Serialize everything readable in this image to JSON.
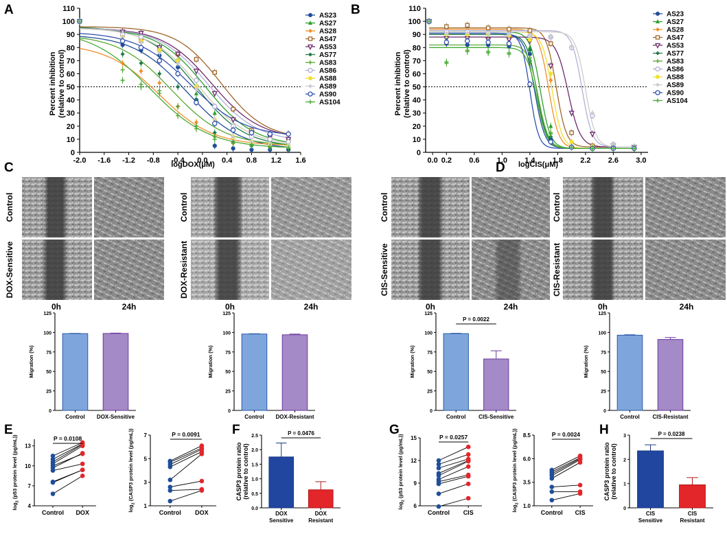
{
  "colors": {
    "blue": "#1f4e9a",
    "bar_blue": "#7fa6dc",
    "bar_purple": "#a48ac6",
    "dark_blue": "#2046a0",
    "red": "#e3262a"
  },
  "legend_series": [
    {
      "name": "AS23",
      "color": "#1f4e9a",
      "marker": "circle"
    },
    {
      "name": "AS27",
      "color": "#2ca02c",
      "marker": "triangle"
    },
    {
      "name": "AS28",
      "color": "#f28e2b",
      "marker": "diamond"
    },
    {
      "name": "AS47",
      "color": "#a0662a",
      "marker": "square-open"
    },
    {
      "name": "AS53",
      "color": "#6b2a6b",
      "marker": "triangle-down-open"
    },
    {
      "name": "AS77",
      "color": "#1e7a4a",
      "marker": "diamond"
    },
    {
      "name": "AS83",
      "color": "#5aa832",
      "marker": "plus"
    },
    {
      "name": "AS86",
      "color": "#b0b0d8",
      "marker": "circle-open"
    },
    {
      "name": "AS88",
      "color": "#f2e030",
      "marker": "circle"
    },
    {
      "name": "AS89",
      "color": "#cccccc",
      "marker": "diamond"
    },
    {
      "name": "AS90",
      "color": "#3050b0",
      "marker": "circle-open"
    },
    {
      "name": "AS104",
      "color": "#44aa33",
      "marker": "plus"
    }
  ],
  "panels": {
    "A": {
      "label": "A",
      "xlabel": "logDOX(μM)"
    },
    "B": {
      "label": "B",
      "xlabel": "logCIS(μM)"
    },
    "C": {
      "label": "C"
    },
    "D": {
      "label": "D"
    },
    "E": {
      "label": "E"
    },
    "F": {
      "label": "F"
    },
    "G": {
      "label": "G"
    },
    "H": {
      "label": "H"
    }
  },
  "dose_ylabel_line1": "Percent inhibition",
  "dose_ylabel_line2": "(relative to control)",
  "micro": {
    "row_top": "Control",
    "c_sens": "DOX-Sensitive",
    "c_res": "DOX-Resistant",
    "d_sens": "CIS-Sensitive",
    "d_res": "CIS-Resistant",
    "time_0": "0h",
    "time_24": "24h"
  },
  "migration_ylabel": "Migration (%)",
  "p_values": {
    "mig_cis_sens": "P = 0.0022",
    "e_p53": "P = 0.0108",
    "e_casp3": "P = 0.0091",
    "f": "P = 0.0476",
    "g_p53": "P = 0.0257",
    "g_casp3": "P = 0.0024",
    "h": "P = 0.0238"
  },
  "paired": {
    "ylabel_p53_pre": "log",
    "ylabel_p53_sub": "2",
    "ylabel_p53_post": " (p53 protein level (pg/mL))",
    "ylabel_casp3_pre": "log",
    "ylabel_casp3_sub": "2",
    "ylabel_casp3_post": " (CASP3 protein level (pg/mL))"
  },
  "bar_ylabel_line1": "CASP3 protein ratio",
  "bar_ylabel_line2": "(relative to control)",
  "bar_categories": {
    "dox_sens_1": "DOX",
    "dox_sens_2": "Sensitive",
    "dox_res_1": "DOX",
    "dox_res_2": "Resistant",
    "cis_sens_1": "CIS",
    "cis_sens_2": "Sensitive",
    "cis_res_1": "CIS",
    "cis_res_2": "Resistant"
  },
  "chart_data": [
    {
      "id": "A",
      "type": "line",
      "title": "",
      "xlabel": "logDOX(μM)",
      "ylabel": "Percent inhibition (relative to control)",
      "xlim": [
        -2.0,
        1.6
      ],
      "ylim": [
        0,
        110
      ],
      "xticks": [
        "-2.0",
        "-1.6",
        "-1.2",
        "-0.8",
        "-0.4",
        "0.0",
        "0.4",
        "0.8",
        "1.2",
        "1.6"
      ],
      "yticks": [
        "0",
        "10",
        "20",
        "30",
        "40",
        "50",
        "60",
        "70",
        "80",
        "90",
        "100",
        "110"
      ],
      "reference_line": 50,
      "x": [
        -2.0,
        -1.3,
        -1.0,
        -0.7,
        -0.4,
        -0.1,
        0.2,
        0.5,
        0.8,
        1.1,
        1.4
      ],
      "series": [
        {
          "name": "AS23",
          "top": 90,
          "bottom": 2,
          "ic50": -0.25,
          "hill": 1.0,
          "values": [
            100,
            82,
            78,
            74,
            65,
            40,
            5,
            3,
            2,
            2,
            2
          ]
        },
        {
          "name": "AS27",
          "top": 95,
          "bottom": 5,
          "ic50": 0.05,
          "hill": 1.1,
          "values": [
            100,
            90,
            85,
            80,
            70,
            45,
            30,
            12,
            7,
            5,
            5
          ]
        },
        {
          "name": "AS28",
          "top": 83,
          "bottom": 5,
          "ic50": -0.7,
          "hill": 1.0,
          "values": [
            100,
            68,
            62,
            53,
            35,
            23,
            12,
            7,
            5,
            4,
            4
          ]
        },
        {
          "name": "AS47",
          "top": 96,
          "bottom": 10,
          "ic50": 0.3,
          "hill": 1.2,
          "values": [
            100,
            90,
            85,
            80,
            75,
            71,
            61,
            33,
            17,
            12,
            10
          ]
        },
        {
          "name": "AS53",
          "top": 95,
          "bottom": 10,
          "ic50": 0.15,
          "hill": 1.1,
          "values": [
            100,
            92,
            91,
            80,
            75,
            62,
            45,
            25,
            15,
            12,
            10
          ]
        },
        {
          "name": "AS77",
          "top": 96,
          "bottom": 4,
          "ic50": -0.1,
          "hill": 1.1,
          "values": [
            100,
            75,
            68,
            60,
            50,
            40,
            15,
            8,
            5,
            4,
            4
          ]
        },
        {
          "name": "AS83",
          "top": 90,
          "bottom": 5,
          "ic50": -0.5,
          "hill": 1.0,
          "values": [
            100,
            63,
            52,
            47,
            28,
            18,
            12,
            8,
            6,
            5,
            5
          ]
        },
        {
          "name": "AS86",
          "top": 95,
          "bottom": 8,
          "ic50": 0.1,
          "hill": 1.1,
          "values": [
            100,
            90,
            88,
            78,
            70,
            55,
            35,
            20,
            12,
            10,
            8
          ]
        },
        {
          "name": "AS88",
          "top": 95,
          "bottom": 5,
          "ic50": -0.05,
          "hill": 1.1,
          "values": [
            100,
            88,
            85,
            78,
            70,
            50,
            25,
            12,
            8,
            6,
            5
          ]
        },
        {
          "name": "AS89",
          "top": 95,
          "bottom": 5,
          "ic50": -0.05,
          "hill": 1.1,
          "values": [
            100,
            88,
            84,
            76,
            68,
            48,
            25,
            12,
            8,
            6,
            5
          ]
        },
        {
          "name": "AS90",
          "top": 92,
          "bottom": 12,
          "ic50": -0.2,
          "hill": 1.0,
          "values": [
            100,
            85,
            80,
            70,
            60,
            38,
            22,
            17,
            15,
            14,
            14
          ]
        },
        {
          "name": "AS104",
          "top": 94,
          "bottom": 3,
          "ic50": -0.85,
          "hill": 0.9,
          "values": [
            100,
            55,
            50,
            45,
            35,
            20,
            10,
            7,
            5,
            4,
            3
          ]
        }
      ]
    },
    {
      "id": "B",
      "type": "line",
      "title": "",
      "xlabel": "logCIS(μM)",
      "ylabel": "Percent inhibition (relative to control)",
      "xlim": [
        -0.1,
        3.1
      ],
      "ylim": [
        0,
        110
      ],
      "xticks": [
        "0.0",
        "0.2",
        "0.6",
        "1.0",
        "1.4",
        "1.8",
        "2.2",
        "2.6",
        "3.0"
      ],
      "yticks": [
        "0",
        "10",
        "20",
        "30",
        "40",
        "50",
        "60",
        "70",
        "80",
        "90",
        "100",
        "110"
      ],
      "reference_line": 50,
      "x": [
        -0.05,
        0.2,
        0.5,
        0.8,
        1.1,
        1.4,
        1.7,
        2.0,
        2.3,
        2.6,
        2.9
      ],
      "series": [
        {
          "name": "AS23",
          "top": 90,
          "bottom": 3,
          "ic50": 1.47,
          "hill": 6,
          "values": [
            100,
            83,
            82,
            82,
            81,
            75,
            10,
            4,
            3,
            3,
            3
          ]
        },
        {
          "name": "AS27",
          "top": 92,
          "bottom": 3,
          "ic50": 1.55,
          "hill": 6,
          "values": [
            100,
            88,
            88,
            88,
            87,
            80,
            20,
            5,
            3,
            3,
            3
          ]
        },
        {
          "name": "AS28",
          "top": 94,
          "bottom": 3,
          "ic50": 1.67,
          "hill": 6,
          "values": [
            100,
            93,
            92,
            92,
            91,
            85,
            55,
            8,
            4,
            3,
            3
          ]
        },
        {
          "name": "AS47",
          "top": 95,
          "bottom": 4,
          "ic50": 1.78,
          "hill": 6,
          "values": [
            100,
            96,
            97,
            95,
            94,
            93,
            83,
            15,
            5,
            4,
            4
          ]
        },
        {
          "name": "AS53",
          "top": 88,
          "bottom": 4,
          "ic50": 1.95,
          "hill": 5,
          "values": [
            100,
            87,
            87,
            86,
            86,
            85,
            66,
            30,
            14,
            5,
            4
          ]
        },
        {
          "name": "AS77",
          "top": 90,
          "bottom": 3,
          "ic50": 1.5,
          "hill": 6,
          "values": [
            100,
            85,
            85,
            84,
            83,
            78,
            12,
            4,
            3,
            3,
            3
          ]
        },
        {
          "name": "AS83",
          "top": 82,
          "bottom": 3,
          "ic50": 1.52,
          "hill": 6,
          "values": [
            100,
            68,
            78,
            77,
            76,
            72,
            15,
            4,
            3,
            3,
            3
          ]
        },
        {
          "name": "AS86",
          "top": 93,
          "bottom": 4,
          "ic50": 2.15,
          "hill": 6,
          "values": [
            100,
            92,
            92,
            91,
            90,
            89,
            88,
            80,
            28,
            6,
            4
          ]
        },
        {
          "name": "AS88",
          "top": 92,
          "bottom": 3,
          "ic50": 1.72,
          "hill": 6,
          "values": [
            100,
            90,
            90,
            90,
            89,
            86,
            60,
            8,
            4,
            3,
            3
          ]
        },
        {
          "name": "AS89",
          "top": 92,
          "bottom": 4,
          "ic50": 2.2,
          "hill": 6,
          "values": [
            100,
            91,
            91,
            90,
            90,
            89,
            88,
            81,
            30,
            6,
            4
          ]
        },
        {
          "name": "AS90",
          "top": 91,
          "bottom": 3,
          "ic50": 1.4,
          "hill": 7,
          "values": [
            100,
            84,
            85,
            84,
            83,
            52,
            8,
            4,
            3,
            3,
            3
          ]
        },
        {
          "name": "AS104",
          "top": 80,
          "bottom": 3,
          "ic50": 1.5,
          "hill": 6,
          "values": [
            100,
            69,
            77,
            76,
            75,
            70,
            14,
            4,
            3,
            3,
            3
          ]
        }
      ]
    },
    {
      "id": "C-sensitive",
      "type": "bar",
      "categories": [
        "Control",
        "DOX-Sensitive"
      ],
      "values": [
        98.5,
        98.7
      ],
      "errors": [
        0.3,
        0.4
      ],
      "ylabel": "Migration (%)",
      "ylim": [
        0,
        125
      ],
      "yticks": [
        "0",
        "25",
        "50",
        "75",
        "100",
        "125"
      ]
    },
    {
      "id": "C-resistant",
      "type": "bar",
      "categories": [
        "Control",
        "DOX-Resistant"
      ],
      "values": [
        98.0,
        97.0
      ],
      "errors": [
        0.4,
        0.9
      ],
      "ylabel": "Migration (%)",
      "ylim": [
        0,
        125
      ],
      "yticks": [
        "0",
        "25",
        "50",
        "75",
        "100",
        "125"
      ]
    },
    {
      "id": "D-sensitive",
      "type": "bar",
      "categories": [
        "Control",
        "CIS-Sensitive"
      ],
      "values": [
        98.5,
        66.0
      ],
      "errors": [
        0.4,
        10.5
      ],
      "ylabel": "Migration (%)",
      "ylim": [
        0,
        125
      ],
      "yticks": [
        "0",
        "25",
        "50",
        "75",
        "100",
        "125"
      ],
      "annotation": "P = 0.0022"
    },
    {
      "id": "D-resistant",
      "type": "bar",
      "categories": [
        "Control",
        "CIS-Resistant"
      ],
      "values": [
        96.5,
        91.0
      ],
      "errors": [
        0.5,
        2.5
      ],
      "ylabel": "Migration (%)",
      "ylim": [
        0,
        125
      ],
      "yticks": [
        "0",
        "25",
        "50",
        "75",
        "100",
        "125"
      ]
    },
    {
      "id": "E-p53",
      "type": "scatter",
      "paired": true,
      "categories": [
        "Control",
        "DOX"
      ],
      "ylim": [
        4,
        14
      ],
      "yticks": [
        "4",
        "7",
        "10",
        "13"
      ],
      "before": [
        5.8,
        7.5,
        7.6,
        9.3,
        9.7,
        10.0,
        10.3,
        10.6,
        11.0,
        11.5
      ],
      "after": [
        8.5,
        9.4,
        9.4,
        10.3,
        11.9,
        11.8,
        13.0,
        13.2,
        13.3,
        13.5
      ],
      "annotation": "P = 0.0108"
    },
    {
      "id": "E-casp3",
      "type": "scatter",
      "paired": true,
      "categories": [
        "Control",
        "DOX"
      ],
      "ylim": [
        1,
        7
      ],
      "yticks": [
        "1",
        "3",
        "5",
        "7"
      ],
      "before": [
        1.4,
        2.3,
        2.6,
        3.2,
        4.3,
        4.5,
        4.7,
        4.8
      ],
      "after": [
        2.3,
        2.4,
        3.1,
        5.4,
        5.6,
        5.8,
        5.9,
        6.1
      ],
      "annotation": "P = 0.0091"
    },
    {
      "id": "F",
      "type": "bar",
      "categories": [
        "DOX Sensitive",
        "DOX Resistant"
      ],
      "values": [
        1.75,
        0.62
      ],
      "errors": [
        0.48,
        0.28
      ],
      "ylabel": "CASP3 protein ratio (relative to control)",
      "ylim": [
        0,
        2.5
      ],
      "yticks": [
        "0.0",
        "0.5",
        "1.0",
        "1.5",
        "2.0",
        "2.5"
      ],
      "annotation": "P = 0.0476"
    },
    {
      "id": "G-p53",
      "type": "scatter",
      "paired": true,
      "categories": [
        "Control",
        "CIS"
      ],
      "ylim": [
        6,
        15
      ],
      "yticks": [
        "6",
        "9",
        "12",
        "15"
      ],
      "before": [
        5.9,
        7.6,
        8.9,
        9.2,
        9.5,
        10.0,
        10.3,
        11.0,
        11.5,
        12.0
      ],
      "after": [
        7.0,
        8.9,
        9.9,
        10.1,
        11.2,
        11.9,
        12.0,
        12.2,
        12.8,
        13.8
      ],
      "annotation": "P = 0.0257"
    },
    {
      "id": "G-casp3",
      "type": "scatter",
      "paired": true,
      "categories": [
        "Control",
        "CIS"
      ],
      "ylim": [
        1.0,
        8.5
      ],
      "yticks": [
        "1.0",
        "3.5",
        "6.0",
        "8.5"
      ],
      "before": [
        1.6,
        2.5,
        3.0,
        3.9,
        4.2,
        4.4,
        4.6,
        4.8
      ],
      "after": [
        2.3,
        2.5,
        3.2,
        5.6,
        5.9,
        6.0,
        6.1,
        6.3
      ],
      "annotation": "P = 0.0024"
    },
    {
      "id": "H",
      "type": "bar",
      "categories": [
        "CIS Sensitive",
        "CIS Resistant"
      ],
      "values": [
        2.35,
        0.95
      ],
      "errors": [
        0.25,
        0.3
      ],
      "ylabel": "CASP3 protein ratio (relative to control)",
      "ylim": [
        0,
        3
      ],
      "yticks": [
        "0",
        "1",
        "2",
        "3"
      ],
      "annotation": "P = 0.0238"
    }
  ]
}
